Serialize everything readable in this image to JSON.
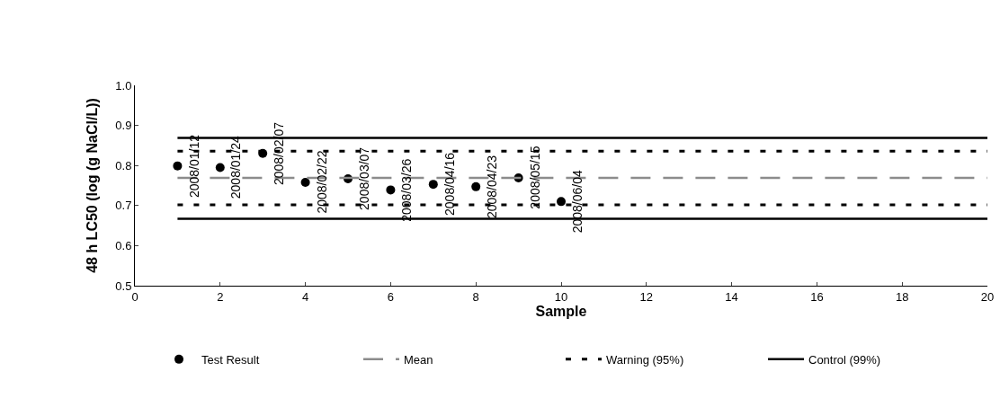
{
  "chart_data": {
    "type": "scatter",
    "xlabel": "Sample",
    "ylabel": "48 h LC50 (log (g NaCl/L))",
    "xlim": [
      0,
      20
    ],
    "xticks": [
      0,
      2,
      4,
      6,
      8,
      10,
      12,
      14,
      16,
      18,
      20
    ],
    "ylim": [
      0.5,
      1.0
    ],
    "yticks": [
      {
        "value": 0.5,
        "label": "0.5"
      },
      {
        "value": 0.6,
        "label": "0.6"
      },
      {
        "value": 0.7,
        "label": "0.7"
      },
      {
        "value": 0.8,
        "label": "0.8"
      },
      {
        "value": 0.9,
        "label": "0.9"
      },
      {
        "value": 1.0,
        "label": "1.0"
      }
    ],
    "grid": false,
    "legend": "bottom",
    "series": [
      {
        "name": "Test Result",
        "type": "scatter",
        "marker": "circle",
        "color": "#000000",
        "x": [
          1,
          2,
          3,
          4,
          5,
          6,
          7,
          8,
          9,
          10
        ],
        "values": [
          0.799,
          0.795,
          0.83,
          0.758,
          0.767,
          0.739,
          0.753,
          0.747,
          0.769,
          0.71
        ]
      },
      {
        "name": "Mean",
        "type": "line",
        "marker": "none",
        "line_style": "dashed",
        "color": "#8c8c8c",
        "x": [
          1,
          20
        ],
        "values": [
          0.769,
          0.769
        ]
      },
      {
        "name": "Warning (95%)",
        "type": "line",
        "marker": "none",
        "line_style": "dotted",
        "color": "#000000",
        "x": [
          1,
          20
        ],
        "values": [
          0.836,
          0.836
        ]
      },
      {
        "type": "line",
        "marker": "none",
        "line_style": "dotted",
        "color": "#000000",
        "x": [
          1,
          20
        ],
        "values": [
          0.702,
          0.702
        ]
      },
      {
        "name": "Control (99%)",
        "type": "line",
        "marker": "none",
        "line_style": "solid",
        "color": "#000000",
        "x": [
          1,
          20
        ],
        "values": [
          0.869,
          0.869
        ]
      },
      {
        "type": "line",
        "marker": "none",
        "line_style": "solid",
        "color": "#000000",
        "x": [
          1,
          20
        ],
        "values": [
          0.667,
          0.667
        ]
      }
    ],
    "annotations": [
      {
        "text": "2008/01/12",
        "x": 1,
        "y": 0.799
      },
      {
        "text": "2008/01/24",
        "x": 2,
        "y": 0.795
      },
      {
        "text": "2008/02/07",
        "x": 3,
        "y": 0.83
      },
      {
        "text": "2008/02/22",
        "x": 4,
        "y": 0.758
      },
      {
        "text": "2008/03/07",
        "x": 5,
        "y": 0.767
      },
      {
        "text": "2008/03/26",
        "x": 6,
        "y": 0.739
      },
      {
        "text": "2008/04/16",
        "x": 7,
        "y": 0.753
      },
      {
        "text": "2008/04/23",
        "x": 8,
        "y": 0.747
      },
      {
        "text": "2008/05/15",
        "x": 9,
        "y": 0.769
      },
      {
        "text": "2008/06/04",
        "x": 10,
        "y": 0.71
      }
    ]
  }
}
